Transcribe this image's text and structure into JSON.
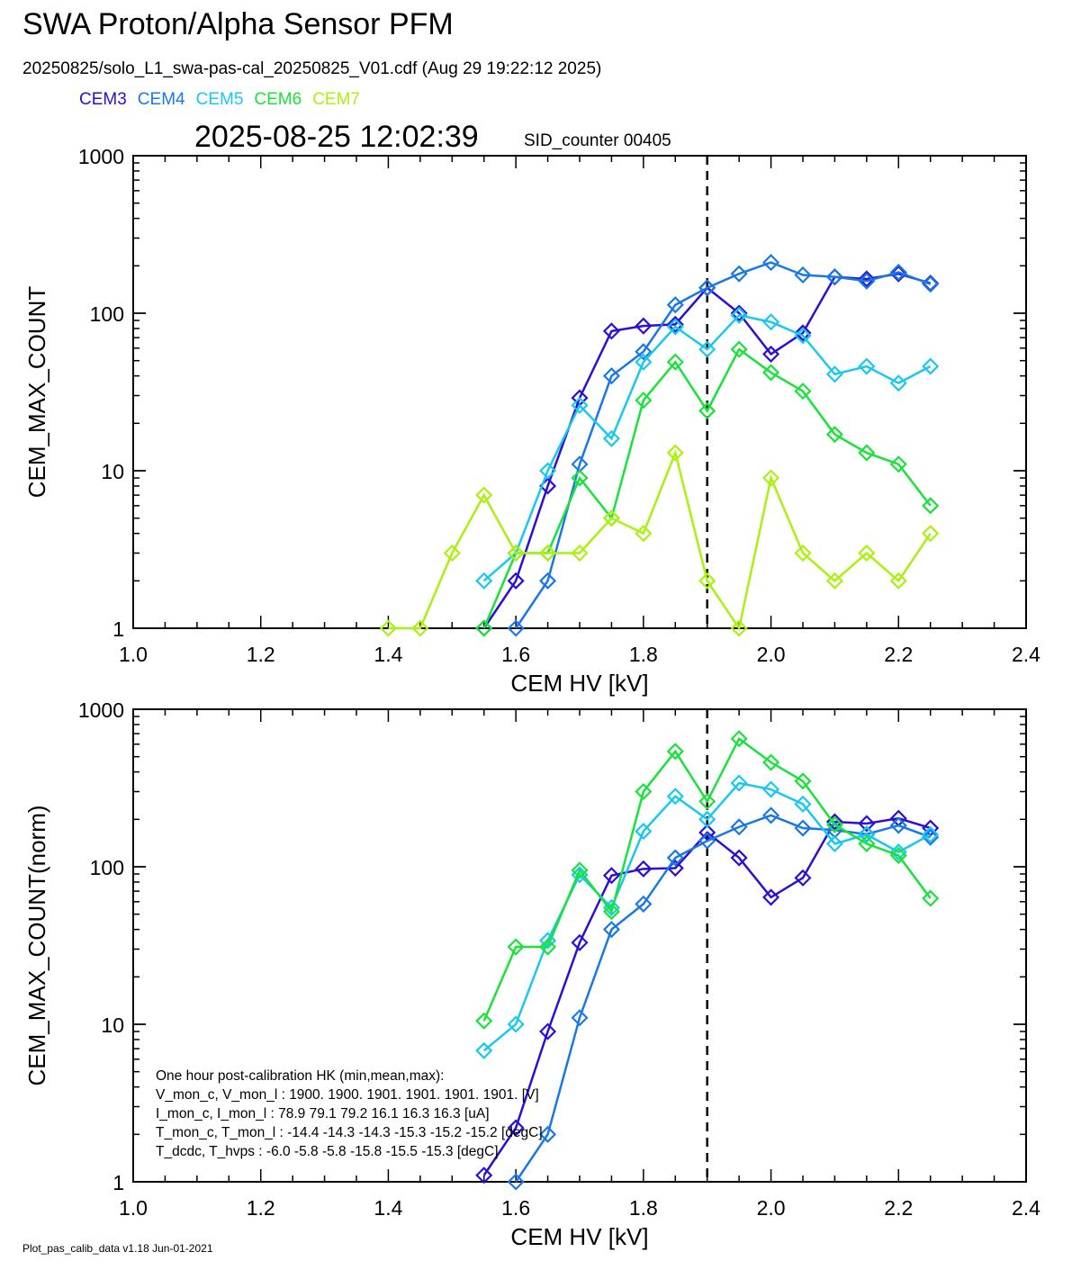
{
  "title": "SWA Proton/Alpha Sensor PFM",
  "file_line": "20250825/solo_L1_swa-pas-cal_20250825_V01.cdf  (Aug 29 19:22:12 2025)",
  "timestamp": "2025-08-25 12:02:39",
  "sid_counter": "SID_counter 00405",
  "footer": "Plot_pas_calib_data v1.18 Jun-01-2021",
  "legend": [
    {
      "label": "CEM3",
      "color": "#2b0fd6"
    },
    {
      "label": "CEM4",
      "color": "#1a78e6"
    },
    {
      "label": "CEM5",
      "color": "#1ac8ee"
    },
    {
      "label": "CEM6",
      "color": "#19e23a"
    },
    {
      "label": "CEM7",
      "color": "#aaf010"
    }
  ],
  "hk_text": [
    "One hour post-calibration HK (min,mean,max):",
    "V_mon_c, V_mon_l :   1900.  1900.  1901.       1901.  1901.  1901. [V]",
    "I_mon_c,  I_mon_l :     78.9  79.1  79.2          16.1   16.3   16.3  [uA]",
    "T_mon_c, T_mon_l :   -14.4  -14.3  -14.3        -15.3  -15.2  -15.2  [degC]",
    "T_dcdc,    T_hvps :      -6.0   -5.8   -5.8          -15.8  -15.5  -15.3  [degC]"
  ],
  "chart_data": [
    {
      "type": "line",
      "xlabel": "CEM HV [kV]",
      "ylabel": "CEM_MAX_COUNT",
      "xlim": [
        1.0,
        2.4
      ],
      "ylim": [
        1,
        1000
      ],
      "yscale": "log",
      "xticks": [
        "1.0",
        "1.2",
        "1.4",
        "1.6",
        "1.8",
        "2.0",
        "2.2",
        "2.4"
      ],
      "yticks": [
        "1",
        "10",
        "100",
        "1000"
      ],
      "vline_x": 1.9,
      "series": [
        {
          "name": "CEM3",
          "color": "#2b0fd6",
          "points": [
            [
              1.55,
              1
            ],
            [
              1.6,
              2
            ],
            [
              1.65,
              8
            ],
            [
              1.7,
              29
            ],
            [
              1.75,
              77
            ],
            [
              1.8,
              83
            ],
            [
              1.85,
              85
            ],
            [
              1.9,
              145
            ],
            [
              1.95,
              100
            ],
            [
              2.0,
              55
            ],
            [
              2.05,
              75
            ],
            [
              2.1,
              170
            ],
            [
              2.15,
              165
            ],
            [
              2.2,
              178
            ],
            [
              2.25,
              155
            ]
          ]
        },
        {
          "name": "CEM4",
          "color": "#1a78e6",
          "points": [
            [
              1.6,
              1
            ],
            [
              1.65,
              2
            ],
            [
              1.7,
              11
            ],
            [
              1.75,
              40
            ],
            [
              1.8,
              57
            ],
            [
              1.85,
              113
            ],
            [
              1.9,
              145
            ],
            [
              1.95,
              178
            ],
            [
              2.0,
              210
            ],
            [
              2.05,
              175
            ],
            [
              2.1,
              170
            ],
            [
              2.15,
              160
            ],
            [
              2.2,
              182
            ],
            [
              2.25,
              153
            ]
          ]
        },
        {
          "name": "CEM5",
          "color": "#1ac8ee",
          "points": [
            [
              1.55,
              2
            ],
            [
              1.6,
              3
            ],
            [
              1.65,
              10
            ],
            [
              1.7,
              26
            ],
            [
              1.75,
              16
            ],
            [
              1.8,
              49
            ],
            [
              1.85,
              82
            ],
            [
              1.9,
              59
            ],
            [
              1.95,
              97
            ],
            [
              2.0,
              88
            ],
            [
              2.05,
              72
            ],
            [
              2.1,
              41
            ],
            [
              2.15,
              46
            ],
            [
              2.2,
              36
            ],
            [
              2.25,
              46
            ]
          ]
        },
        {
          "name": "CEM6",
          "color": "#19e23a",
          "points": [
            [
              1.55,
              1
            ],
            [
              1.6,
              3
            ],
            [
              1.65,
              3
            ],
            [
              1.7,
              9
            ],
            [
              1.75,
              5
            ],
            [
              1.8,
              28
            ],
            [
              1.85,
              49
            ],
            [
              1.9,
              24
            ],
            [
              1.95,
              59
            ],
            [
              2.0,
              42
            ],
            [
              2.05,
              32
            ],
            [
              2.1,
              17
            ],
            [
              2.15,
              13
            ],
            [
              2.2,
              11
            ],
            [
              2.25,
              6
            ]
          ]
        },
        {
          "name": "CEM7",
          "color": "#aaf010",
          "points": [
            [
              1.4,
              1
            ],
            [
              1.45,
              1
            ],
            [
              1.5,
              3
            ],
            [
              1.55,
              7
            ],
            [
              1.6,
              3
            ],
            [
              1.65,
              3
            ],
            [
              1.7,
              3
            ],
            [
              1.75,
              5
            ],
            [
              1.8,
              4
            ],
            [
              1.85,
              13
            ],
            [
              1.9,
              2
            ],
            [
              1.95,
              1
            ],
            [
              2.0,
              9
            ],
            [
              2.05,
              3
            ],
            [
              2.1,
              2
            ],
            [
              2.15,
              3
            ],
            [
              2.2,
              2
            ],
            [
              2.25,
              4
            ]
          ]
        }
      ]
    },
    {
      "type": "line",
      "xlabel": "CEM HV [kV]",
      "ylabel": "CEM_MAX_COUNT(norm)",
      "xlim": [
        1.0,
        2.4
      ],
      "ylim": [
        1,
        1000
      ],
      "yscale": "log",
      "xticks": [
        "1.0",
        "1.2",
        "1.4",
        "1.6",
        "1.8",
        "2.0",
        "2.2",
        "2.4"
      ],
      "yticks": [
        "1",
        "10",
        "100",
        "1000"
      ],
      "vline_x": 1.9,
      "series": [
        {
          "name": "CEM3",
          "color": "#2b0fd6",
          "points": [
            [
              1.55,
              1.1
            ],
            [
              1.6,
              2.2
            ],
            [
              1.65,
              9
            ],
            [
              1.7,
              33
            ],
            [
              1.75,
              88
            ],
            [
              1.8,
              97
            ],
            [
              1.85,
              98
            ],
            [
              1.9,
              165
            ],
            [
              1.95,
              114
            ],
            [
              2.0,
              64
            ],
            [
              2.05,
              85
            ],
            [
              2.1,
              193
            ],
            [
              2.15,
              188
            ],
            [
              2.2,
              203
            ],
            [
              2.25,
              176
            ]
          ]
        },
        {
          "name": "CEM4",
          "color": "#1a78e6",
          "points": [
            [
              1.6,
              1
            ],
            [
              1.65,
              2
            ],
            [
              1.7,
              11
            ],
            [
              1.75,
              40
            ],
            [
              1.8,
              58
            ],
            [
              1.85,
              114
            ],
            [
              1.9,
              146
            ],
            [
              1.95,
              179
            ],
            [
              2.0,
              212
            ],
            [
              2.05,
              176
            ],
            [
              2.1,
              171
            ],
            [
              2.15,
              161
            ],
            [
              2.2,
              183
            ],
            [
              2.25,
              154
            ]
          ]
        },
        {
          "name": "CEM5",
          "color": "#1ac8ee",
          "points": [
            [
              1.55,
              6.8
            ],
            [
              1.6,
              10
            ],
            [
              1.65,
              34
            ],
            [
              1.7,
              89
            ],
            [
              1.75,
              55
            ],
            [
              1.8,
              168
            ],
            [
              1.85,
              280
            ],
            [
              1.9,
              200
            ],
            [
              1.95,
              340
            ],
            [
              2.0,
              310
            ],
            [
              2.05,
              250
            ],
            [
              2.1,
              140
            ],
            [
              2.15,
              160
            ],
            [
              2.2,
              124
            ],
            [
              2.25,
              160
            ]
          ]
        },
        {
          "name": "CEM6",
          "color": "#19e23a",
          "points": [
            [
              1.55,
              10.5
            ],
            [
              1.6,
              31
            ],
            [
              1.65,
              31
            ],
            [
              1.7,
              95
            ],
            [
              1.75,
              52
            ],
            [
              1.8,
              300
            ],
            [
              1.85,
              540
            ],
            [
              1.9,
              260
            ],
            [
              1.95,
              650
            ],
            [
              2.0,
              460
            ],
            [
              2.05,
              350
            ],
            [
              2.1,
              185
            ],
            [
              2.15,
              140
            ],
            [
              2.2,
              118
            ],
            [
              2.25,
              63
            ]
          ]
        }
      ]
    }
  ]
}
